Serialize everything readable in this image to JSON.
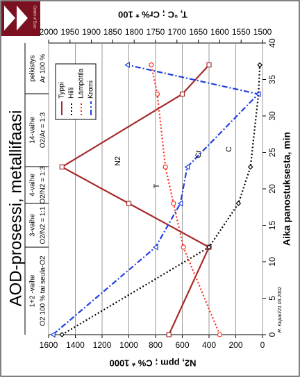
{
  "logo_text": "Centre of Exce",
  "chart_data": {
    "type": "line",
    "title": "AOD-prosessi, metallifaasi",
    "xlabel": "Aika panostuksesta, min",
    "ylabel": "N2, ppm ; C% * 1000",
    "y2label": "T, °C ; Cr% * 100",
    "phases": [
      {
        "name": "1+2 -vaihe",
        "gas": "O2 100 % tai seula-O2"
      },
      {
        "name": "3-vaihe",
        "gas": "O2/N2 = 1:1"
      },
      {
        "name": "4-vaihe",
        "gas": "O2/N2 = 1:3"
      },
      {
        "name": "14-vaihe",
        "gas": "O2/Ar = 1:3"
      },
      {
        "name": "pelkistys",
        "gas": "Ar 100 %"
      }
    ],
    "annotations": [
      "N2",
      "T",
      "Cr",
      "C"
    ],
    "credit": "R. Kupari/21.03.2002",
    "x": [
      0,
      12,
      18,
      23,
      33,
      37
    ],
    "xlim": [
      0,
      40
    ],
    "xticks": [
      0,
      5,
      10,
      15,
      20,
      25,
      30,
      35,
      40
    ],
    "ylim": [
      0,
      1600
    ],
    "yticks": [
      0,
      200,
      400,
      600,
      800,
      1000,
      1200,
      1400,
      1600
    ],
    "y2lim": [
      1500,
      2000
    ],
    "y2ticks": [
      1500,
      1550,
      1600,
      1650,
      1700,
      1750,
      1800,
      1850,
      1900,
      1950,
      2000
    ],
    "grid": true,
    "series": [
      {
        "name": "Typpi",
        "color": "#a52a2a",
        "dash": "solid",
        "marker": "square",
        "values": [
          700,
          400,
          1000,
          1500,
          600,
          400
        ]
      },
      {
        "name": "Hiili",
        "color": "#000000",
        "dash": "dot",
        "marker": "diamond",
        "values": [
          1500,
          400,
          180,
          90,
          30,
          20
        ]
      },
      {
        "name": "Lämpötila",
        "color": "#ff2a1a",
        "dash": "dot",
        "marker": "circle",
        "axis": "y2",
        "values": [
          1600,
          1685,
          1708,
          1727,
          1746,
          1760
        ]
      },
      {
        "name": "Kromi",
        "color": "#1f3fe0",
        "dash": "dashdot",
        "marker": "triangle",
        "axis": "y2",
        "values": [
          1990,
          1750,
          1692,
          1676,
          1510,
          1816
        ]
      }
    ]
  }
}
